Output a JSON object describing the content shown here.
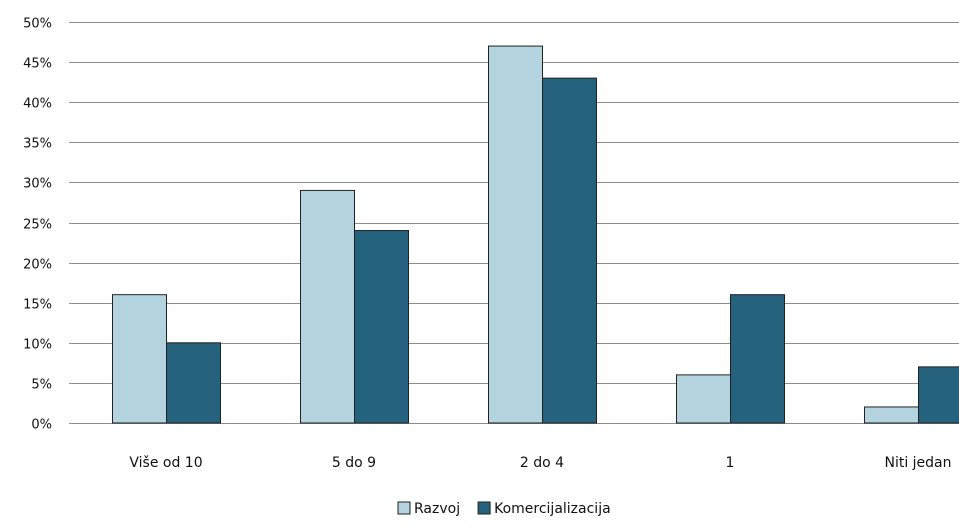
{
  "chart_data": {
    "type": "bar",
    "categories": [
      "Više od 10",
      "5 do 9",
      "2 do 4",
      "1",
      "Niti jedan"
    ],
    "series": [
      {
        "name": "Razvoj",
        "values": [
          16,
          29,
          47,
          6,
          2
        ],
        "color": "#b3d4de"
      },
      {
        "name": "Komercijalizacija",
        "values": [
          10,
          24,
          43,
          16,
          7
        ],
        "color": "#24627d"
      }
    ],
    "ylim": [
      0,
      50
    ],
    "y_ticks": [
      "0%",
      "5%",
      "10%",
      "15%",
      "20%",
      "25%",
      "30%",
      "35%",
      "40%",
      "45%",
      "50%"
    ],
    "y_tick_values": [
      0,
      5,
      10,
      15,
      20,
      25,
      30,
      35,
      40,
      45,
      50
    ],
    "grid": true,
    "legend_position": "bottom",
    "gridline_color": "#8c8c8c",
    "bar_border_color": "#222222"
  }
}
